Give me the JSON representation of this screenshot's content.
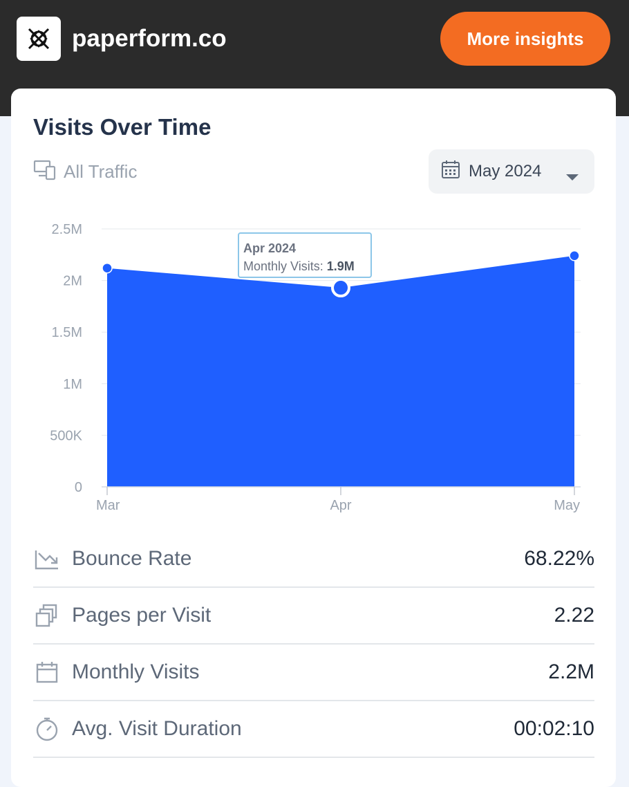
{
  "header": {
    "site": "paperform.co",
    "cta_label": "More insights",
    "logo_icon": "paperform-logo-icon"
  },
  "card": {
    "title": "Visits Over Time",
    "traffic_label": "All Traffic",
    "date_selector": "May 2024"
  },
  "tooltip": {
    "title": "Apr 2024",
    "label": "Monthly Visits:",
    "value": "1.9M"
  },
  "chart_data": {
    "type": "area",
    "categories": [
      "Mar",
      "Apr",
      "May"
    ],
    "values": [
      2120000,
      1930000,
      2240000
    ],
    "yticks": [
      "0",
      "500K",
      "1M",
      "1.5M",
      "2M",
      "2.5M"
    ],
    "ylim": [
      0,
      2500000
    ],
    "grid": true,
    "color": "#1f5fff",
    "highlight_index": 1
  },
  "metrics": [
    {
      "icon": "trend-down-icon",
      "label": "Bounce Rate",
      "value": "68.22%"
    },
    {
      "icon": "pages-icon",
      "label": "Pages per Visit",
      "value": "2.22"
    },
    {
      "icon": "calendar-icon",
      "label": "Monthly Visits",
      "value": "2.2M"
    },
    {
      "icon": "stopwatch-icon",
      "label": "Avg. Visit Duration",
      "value": "00:02:10"
    }
  ],
  "colors": {
    "topbar": "#2b2b2b",
    "accent": "#f36c22",
    "series": "#1f5fff"
  }
}
